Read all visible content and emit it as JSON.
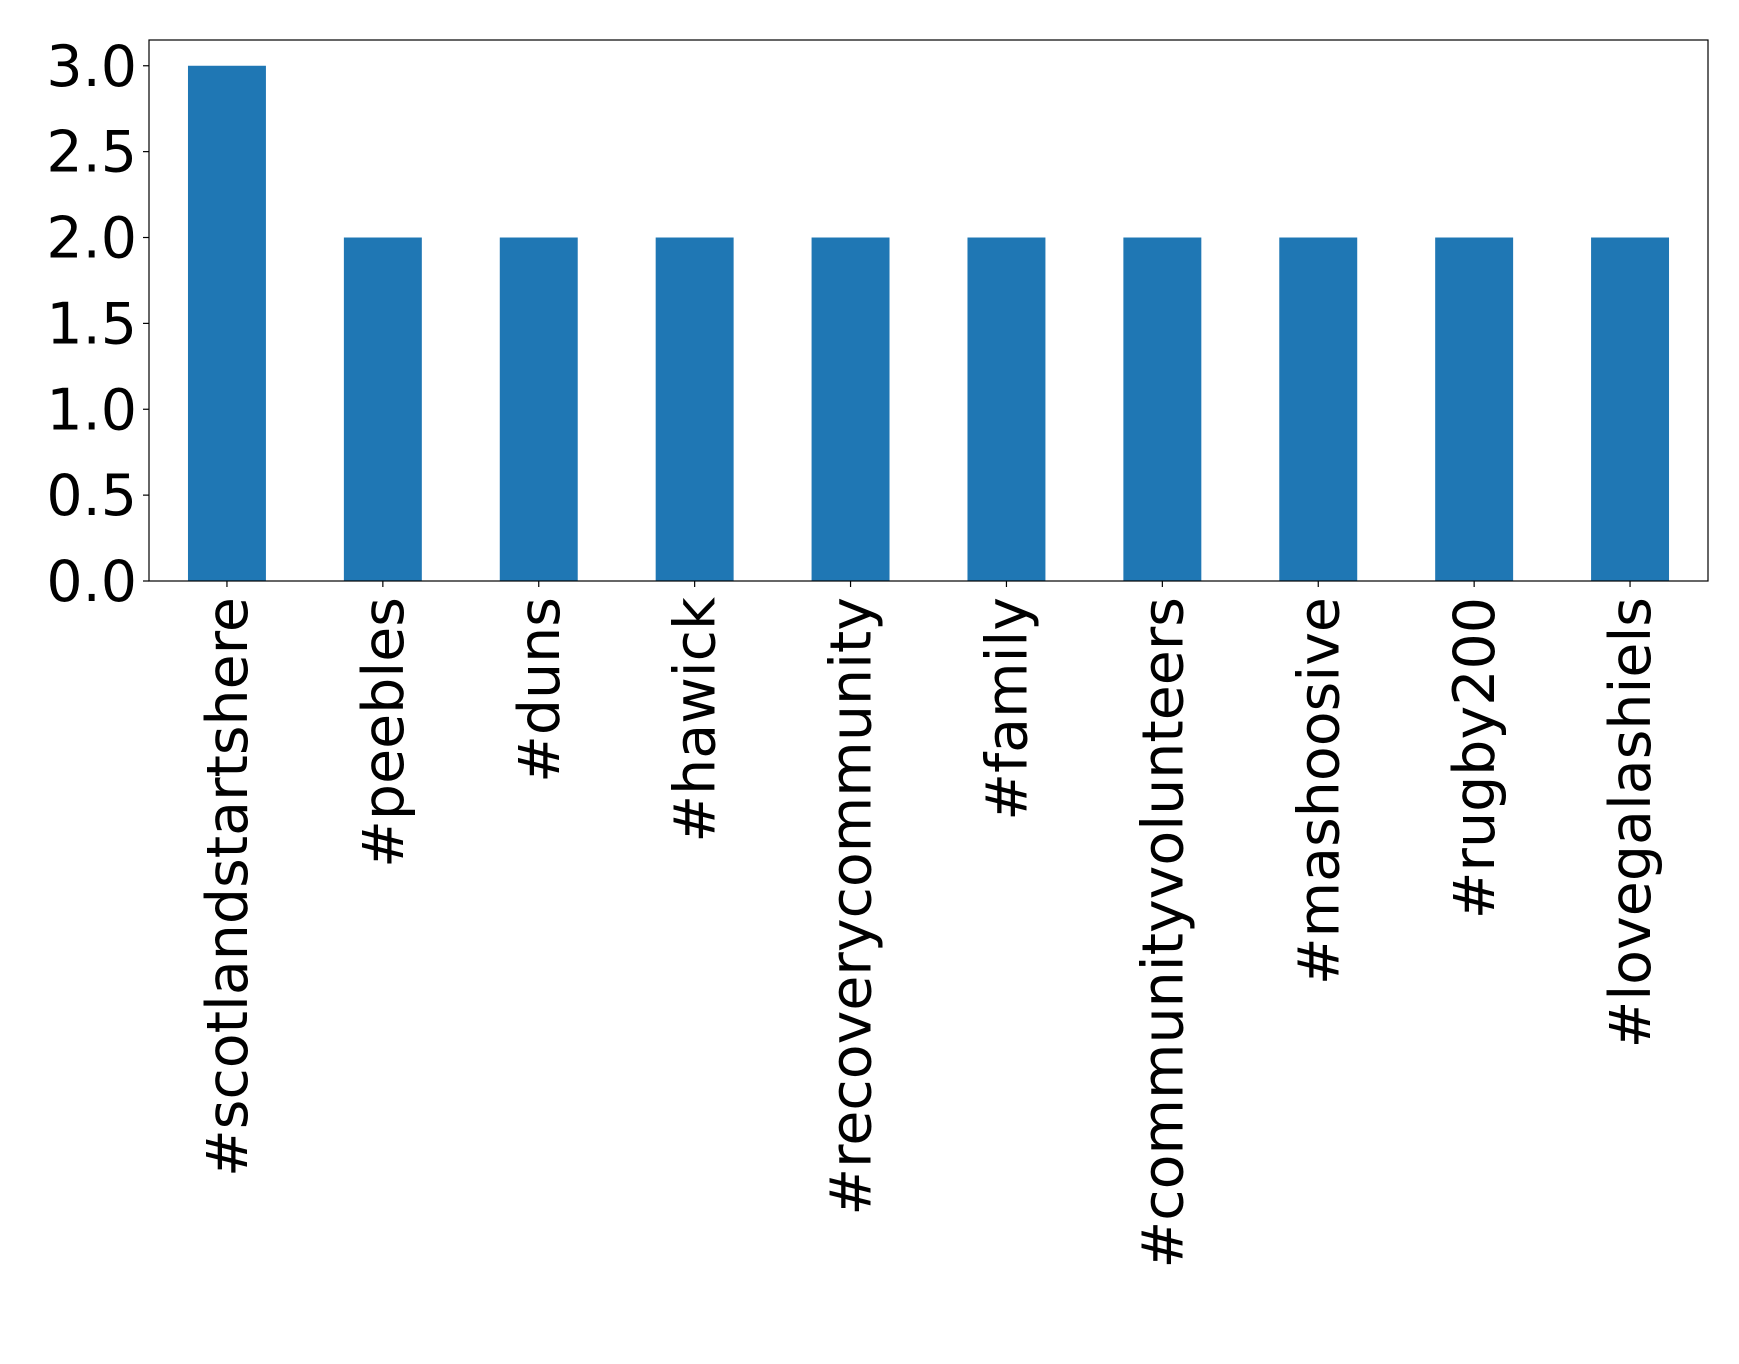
{
  "chart_data": {
    "type": "bar",
    "categories": [
      "#scotlandstartshere",
      "#peebles",
      "#duns",
      "#hawick",
      "#recoverycommunity",
      "#family",
      "#communityvolunteers",
      "#mashoosive",
      "#rugby200",
      "#lovegalashiels"
    ],
    "values": [
      3,
      2,
      2,
      2,
      2,
      2,
      2,
      2,
      2,
      2
    ],
    "color": "#1f77b4",
    "ylim": [
      0,
      3.15
    ],
    "yticks": [
      {
        "value": 0,
        "label": "0.0"
      },
      0.5,
      {
        "value": 1,
        "label": "1.0"
      },
      1.5,
      {
        "value": 2,
        "label": "2.0"
      },
      2.5,
      {
        "value": 3,
        "label": "3.0"
      }
    ],
    "grid": false
  }
}
